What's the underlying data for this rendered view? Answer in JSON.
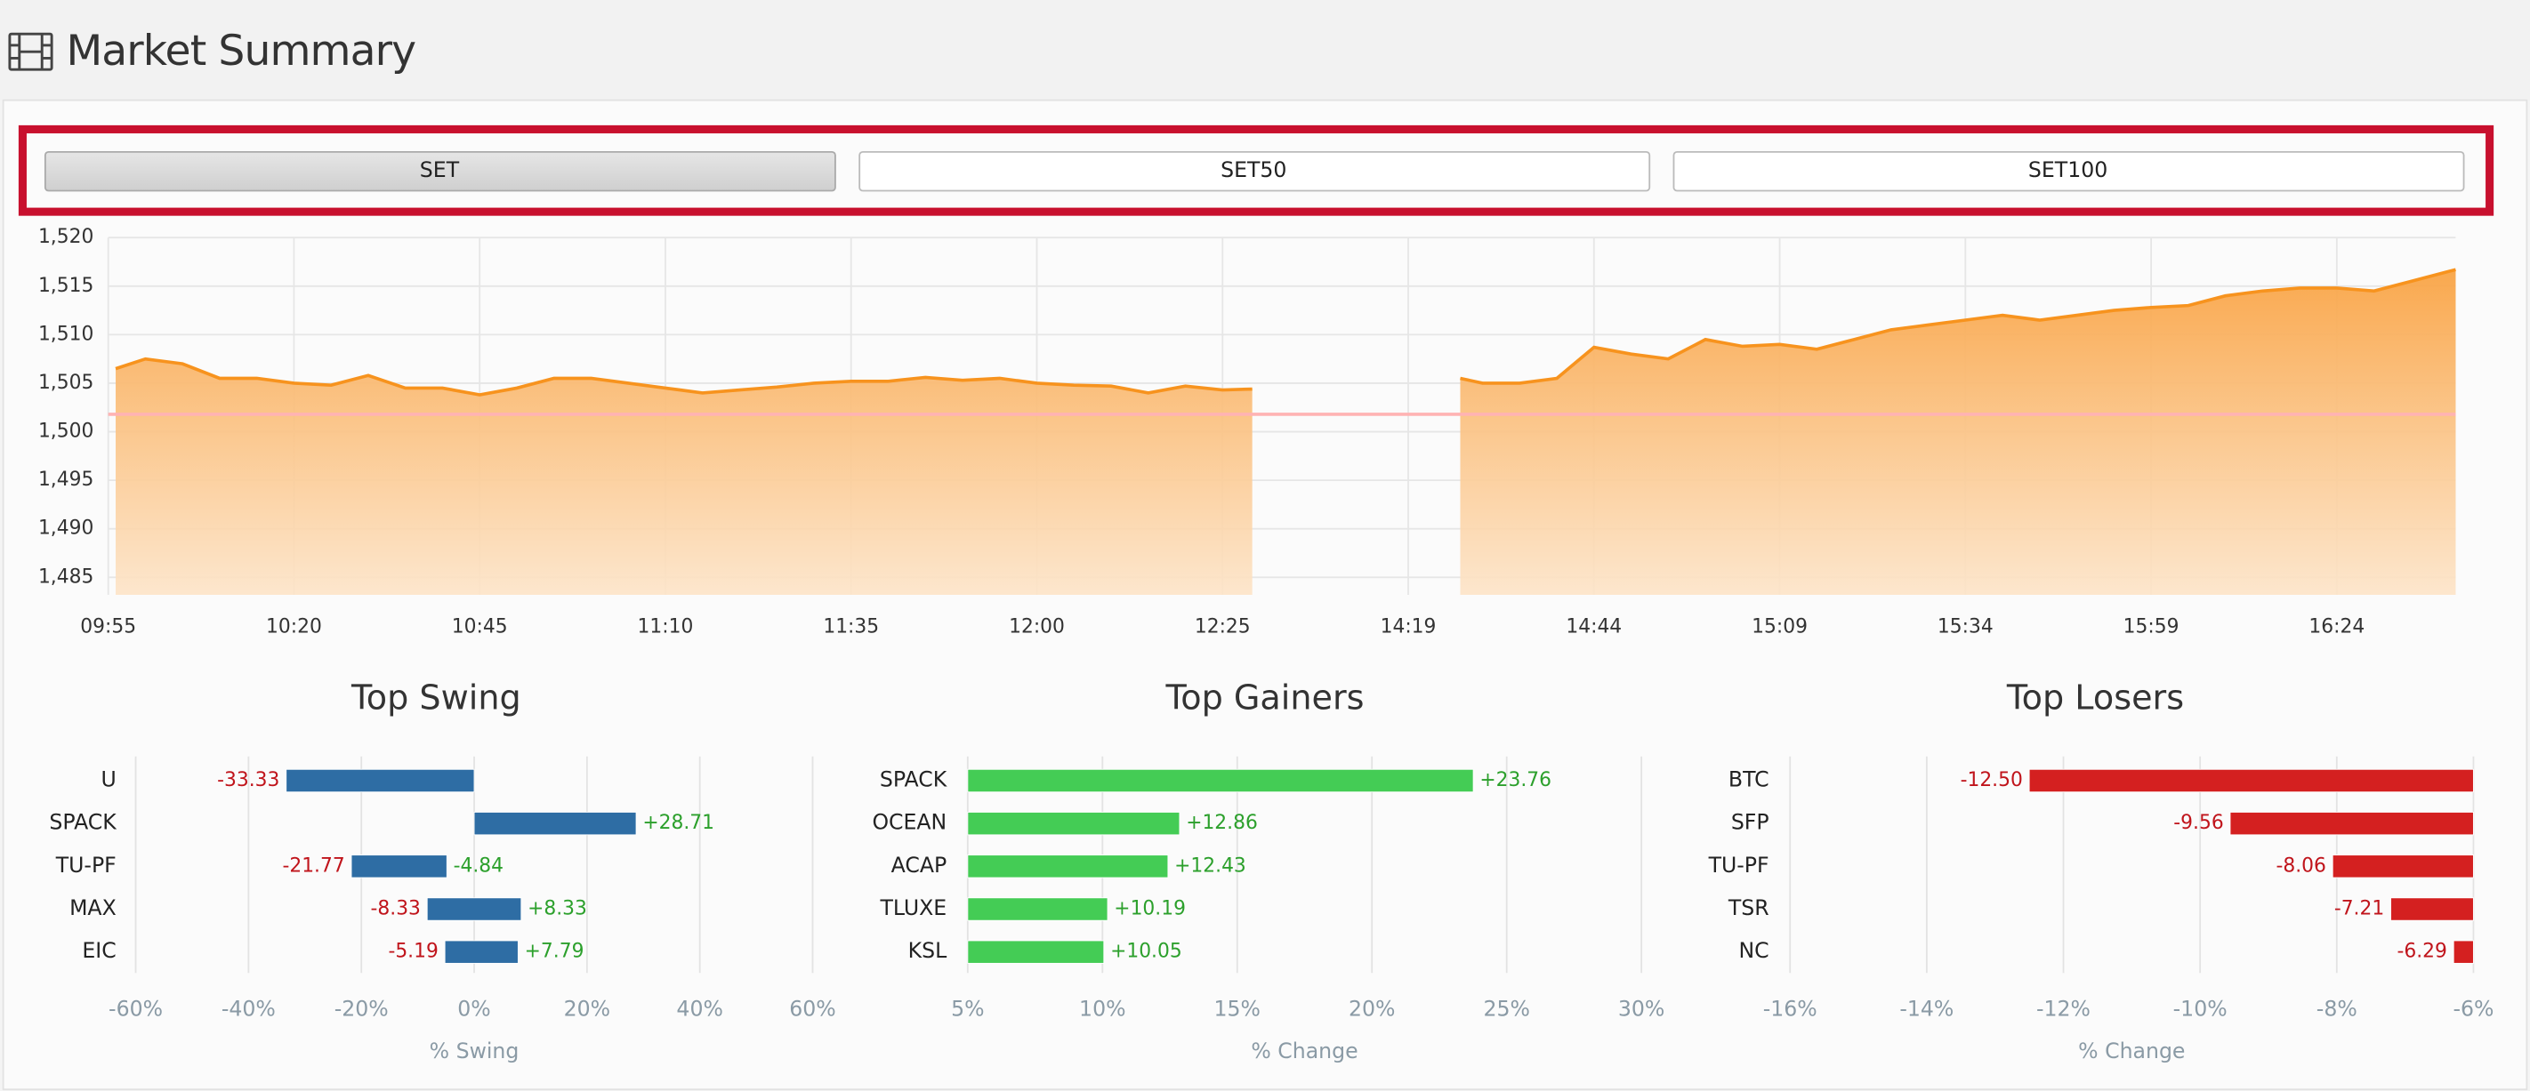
{
  "header": {
    "title": "Market Summary"
  },
  "tabs": [
    "SET",
    "SET50",
    "SET100"
  ],
  "chart_data": [
    {
      "type": "area",
      "color": "#f7931e",
      "grid": true,
      "x": [
        1,
        5,
        10,
        15,
        20,
        25,
        30,
        35,
        40,
        45,
        50,
        55,
        60,
        65,
        70,
        75,
        80,
        85,
        90,
        95,
        100,
        105,
        110,
        115,
        120,
        125,
        130,
        135,
        140,
        145,
        150,
        154,
        165,
        182,
        185,
        190,
        195,
        200,
        205,
        210,
        215,
        220,
        225,
        230,
        235,
        240,
        245,
        250,
        255,
        260,
        265,
        270,
        275,
        280,
        285,
        290,
        295,
        300,
        305,
        310,
        315,
        316
      ],
      "values": [
        1506.5,
        1507.5,
        1507,
        1505.5,
        1505.5,
        1505,
        1504.8,
        1505.8,
        1504.5,
        1504.5,
        1503.8,
        1504.5,
        1505.5,
        1505.5,
        1505,
        1504.5,
        1504,
        1504.3,
        1504.6,
        1505,
        1505.2,
        1505.2,
        1505.6,
        1505.3,
        1505.5,
        1505,
        1504.8,
        1504.7,
        1504,
        1504.7,
        1504.3,
        1504.4,
        null,
        1505.5,
        1505,
        1505,
        1505.5,
        1508.7,
        1508,
        1507.5,
        1509.5,
        1508.8,
        1509,
        1508.5,
        1509.5,
        1510.5,
        1511,
        1511.5,
        1512,
        1511.5,
        1512,
        1512.5,
        1512.8,
        1513,
        1514,
        1514.5,
        1514.8,
        1514.8,
        1514.5,
        1515.5,
        1516.5,
        1516.7
      ],
      "reference": 1501.8,
      "reference_color": "#ffb3b3",
      "xlim": [
        0,
        316
      ],
      "xticks": [
        {
          "value": 0,
          "label": "09:55"
        },
        {
          "value": 25,
          "label": "10:20"
        },
        {
          "value": 50,
          "label": "10:45"
        },
        {
          "value": 75,
          "label": "11:10"
        },
        {
          "value": 100,
          "label": "11:35"
        },
        {
          "value": 125,
          "label": "12:00"
        },
        {
          "value": 150,
          "label": "12:25"
        },
        {
          "value": 175,
          "label": "14:19"
        },
        {
          "value": 200,
          "label": "14:44"
        },
        {
          "value": 225,
          "label": "15:09"
        },
        {
          "value": 250,
          "label": "15:34"
        },
        {
          "value": 275,
          "label": "15:59"
        },
        {
          "value": 300,
          "label": "16:24"
        }
      ],
      "ylim": [
        1483.2,
        1520
      ],
      "yticks": [
        {
          "value": 1485,
          "label": "1,485"
        },
        {
          "value": 1490,
          "label": "1,490"
        },
        {
          "value": 1495,
          "label": "1,495"
        },
        {
          "value": 1500,
          "label": "1,500"
        },
        {
          "value": 1505,
          "label": "1,505"
        },
        {
          "value": 1510,
          "label": "1,510"
        },
        {
          "value": 1515,
          "label": "1,515"
        },
        {
          "value": 1520,
          "label": "1,520"
        }
      ]
    },
    {
      "type": "bar",
      "orientation": "horizontal",
      "title": "Top Swing",
      "x_label": "% Swing",
      "categories": [
        "U",
        "SPACK",
        "TU-PF",
        "MAX",
        "EIC"
      ],
      "series": [
        {
          "color": "#2e6da4",
          "label_color": "#c0141b",
          "values": [
            -33.33,
            null,
            -21.77,
            -8.33,
            -5.19
          ],
          "value_labels": [
            "-33.33",
            null,
            "-21.77",
            "-8.33",
            "-5.19"
          ]
        },
        {
          "color": "#2e6da4",
          "label_color": "#2ca02c",
          "values": [
            null,
            28.71,
            -4.84,
            8.33,
            7.79
          ],
          "value_labels": [
            null,
            "+28.71",
            "-4.84",
            "+8.33",
            "+7.79"
          ]
        }
      ],
      "xlim": [
        -60,
        60
      ],
      "xticks": [
        {
          "value": -60,
          "label": "-60%"
        },
        {
          "value": -40,
          "label": "-40%"
        },
        {
          "value": -20,
          "label": "-20%"
        },
        {
          "value": 0,
          "label": "0%"
        },
        {
          "value": 20,
          "label": "20%"
        },
        {
          "value": 40,
          "label": "40%"
        },
        {
          "value": 60,
          "label": "60%"
        }
      ]
    },
    {
      "type": "bar",
      "orientation": "horizontal",
      "title": "Top Gainers",
      "x_label": "% Change",
      "categories": [
        "SPACK",
        "OCEAN",
        "ACAP",
        "TLUXE",
        "KSL"
      ],
      "series": [
        {
          "color": "#44cc55",
          "label_color": "#2ca02c",
          "values": [
            23.76,
            12.86,
            12.43,
            10.19,
            10.05
          ],
          "value_labels": [
            "+23.76",
            "+12.86",
            "+12.43",
            "+10.19",
            "+10.05"
          ]
        }
      ],
      "xlim": [
        5,
        30
      ],
      "xticks": [
        {
          "value": 5,
          "label": "5%"
        },
        {
          "value": 10,
          "label": "10%"
        },
        {
          "value": 15,
          "label": "15%"
        },
        {
          "value": 20,
          "label": "20%"
        },
        {
          "value": 25,
          "label": "25%"
        },
        {
          "value": 30,
          "label": "30%"
        }
      ]
    },
    {
      "type": "bar",
      "orientation": "horizontal",
      "title": "Top Losers",
      "x_label": "% Change",
      "categories": [
        "BTC",
        "SFP",
        "TU-PF",
        "TSR",
        "NC"
      ],
      "series": [
        {
          "color": "#d42020",
          "label_color": "#c0141b",
          "values": [
            -12.5,
            -9.56,
            -8.06,
            -7.21,
            -6.29
          ],
          "value_labels": [
            "-12.50",
            "-9.56",
            "-8.06",
            "-7.21",
            "-6.29"
          ]
        }
      ],
      "xlim": [
        -16,
        -6
      ],
      "xticks": [
        {
          "value": -16,
          "label": "-16%"
        },
        {
          "value": -14,
          "label": "-14%"
        },
        {
          "value": -12,
          "label": "-12%"
        },
        {
          "value": -10,
          "label": "-10%"
        },
        {
          "value": -8,
          "label": "-8%"
        },
        {
          "value": -6,
          "label": "-6%"
        }
      ]
    }
  ]
}
